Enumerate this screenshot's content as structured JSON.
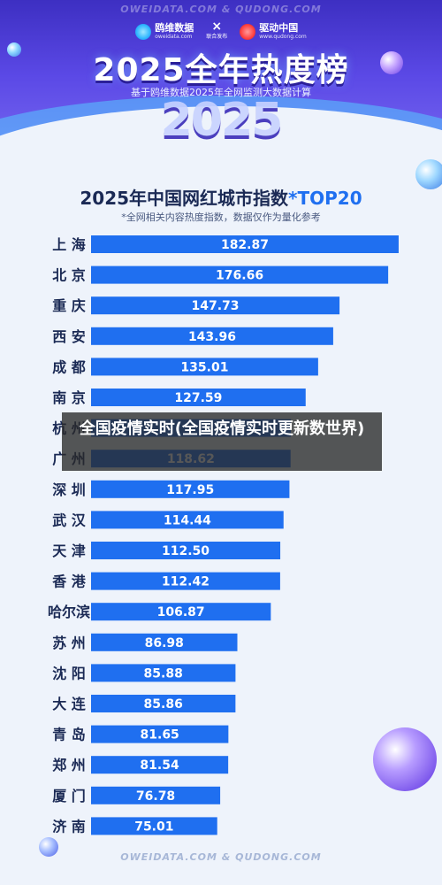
{
  "header": {
    "watermark": "OWEIDATA.COM  &  QUDONG.COM",
    "logo_left_name": "鸥维数据",
    "logo_left_sub": "oweidata.com",
    "cross_symbol": "×",
    "cross_sub": "联合发布",
    "logo_right_name": "驱动中国",
    "logo_right_sub": "www.qudong.com",
    "main_title": "2025全年热度榜",
    "subtitle": "基于鸥维数据2025年全网监测大数据计算",
    "year_art": "2025",
    "colors": {
      "primary": "#4a3bd8",
      "accent": "#1f6ff0"
    }
  },
  "overlay_caption": "全国疫情实时(全国疫情实时更新数世界)",
  "chart_data": {
    "type": "bar",
    "orientation": "horizontal",
    "title_main": "2025年中国网红城市指数",
    "title_accent": "*TOP20",
    "subtitle": "*全网相关内容热度指数，数据仅作为量化参考",
    "categories": [
      "上 海",
      "北 京",
      "重 庆",
      "西 安",
      "成 都",
      "南 京",
      "杭 州",
      "广 州",
      "深 圳",
      "武 汉",
      "天 津",
      "香 港",
      "哈尔滨",
      "苏 州",
      "沈 阳",
      "大 连",
      "青 岛",
      "郑 州",
      "厦 门",
      "济 南"
    ],
    "values": [
      182.87,
      176.66,
      147.73,
      143.96,
      135.01,
      127.59,
      118.8,
      118.62,
      117.95,
      114.44,
      112.5,
      112.42,
      106.87,
      86.98,
      85.88,
      85.86,
      81.65,
      81.54,
      76.78,
      75.01
    ],
    "value_labels": [
      "182.87",
      "176.66",
      "147.73",
      "143.96",
      "135.01",
      "127.59",
      "",
      "118.62",
      "117.95",
      "114.44",
      "112.50",
      "112.42",
      "106.87",
      "86.98",
      "85.88",
      "85.86",
      "81.65",
      "81.54",
      "76.78",
      "75.01"
    ],
    "bar_color": "#1f6ff0",
    "xlim": [
      0,
      185
    ],
    "grid": false,
    "legend": "none"
  },
  "footer": {
    "watermark": "OWEIDATA.COM  &  QUDONG.COM"
  }
}
